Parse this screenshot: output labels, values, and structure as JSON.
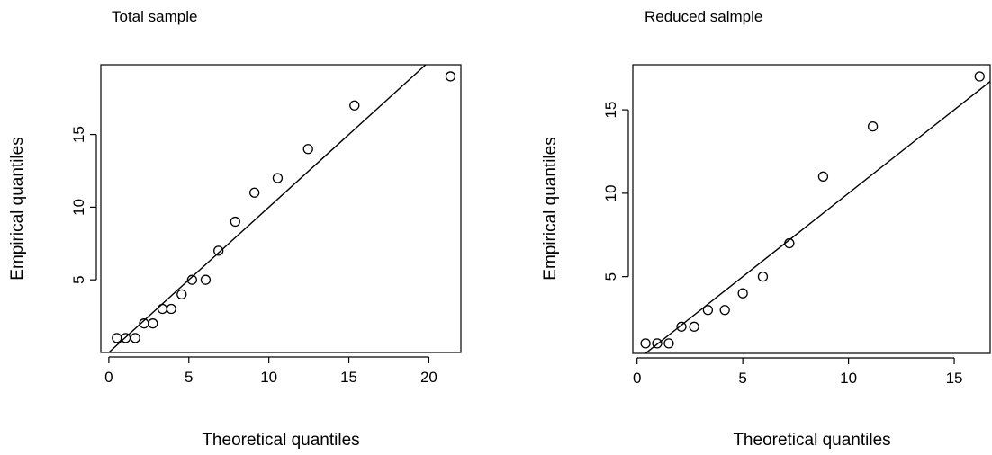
{
  "chart_data": [
    {
      "type": "scatter",
      "title": "Total sample",
      "xlabel": "Theoretical quantiles",
      "ylabel": "Empirical quantiles",
      "xlim": [
        -0.5,
        22.0
      ],
      "ylim": [
        0.0,
        19.8
      ],
      "xticks": [
        0,
        5,
        10,
        15,
        20
      ],
      "yticks": [
        5,
        10,
        15
      ],
      "grid": false,
      "reference_line": {
        "intercept": 0.0,
        "slope": 1.0
      },
      "points": [
        {
          "x": 0.5,
          "y": 1
        },
        {
          "x": 1.05,
          "y": 1
        },
        {
          "x": 1.65,
          "y": 1
        },
        {
          "x": 2.2,
          "y": 2
        },
        {
          "x": 2.75,
          "y": 2
        },
        {
          "x": 3.35,
          "y": 3
        },
        {
          "x": 3.9,
          "y": 3
        },
        {
          "x": 4.55,
          "y": 4
        },
        {
          "x": 5.2,
          "y": 5
        },
        {
          "x": 6.05,
          "y": 5
        },
        {
          "x": 6.85,
          "y": 7
        },
        {
          "x": 7.9,
          "y": 9
        },
        {
          "x": 9.1,
          "y": 11
        },
        {
          "x": 10.55,
          "y": 12
        },
        {
          "x": 12.45,
          "y": 14
        },
        {
          "x": 15.35,
          "y": 17
        },
        {
          "x": 21.35,
          "y": 19
        }
      ]
    },
    {
      "type": "scatter",
      "title": "Reduced salmple",
      "xlabel": "Theoretical quantiles",
      "ylabel": "Empirical quantiles",
      "xlim": [
        -0.2,
        16.7
      ],
      "ylim": [
        0.4,
        17.7
      ],
      "xticks": [
        0,
        5,
        10,
        15
      ],
      "yticks": [
        5,
        10,
        15
      ],
      "grid": false,
      "reference_line": {
        "intercept": 0.0,
        "slope": 1.0
      },
      "points": [
        {
          "x": 0.4,
          "y": 1
        },
        {
          "x": 0.95,
          "y": 1
        },
        {
          "x": 1.5,
          "y": 1
        },
        {
          "x": 2.1,
          "y": 2
        },
        {
          "x": 2.7,
          "y": 2
        },
        {
          "x": 3.35,
          "y": 3
        },
        {
          "x": 4.15,
          "y": 3
        },
        {
          "x": 5.0,
          "y": 4
        },
        {
          "x": 5.95,
          "y": 5
        },
        {
          "x": 7.2,
          "y": 7
        },
        {
          "x": 8.8,
          "y": 11
        },
        {
          "x": 11.15,
          "y": 14
        },
        {
          "x": 16.2,
          "y": 17
        }
      ]
    }
  ]
}
